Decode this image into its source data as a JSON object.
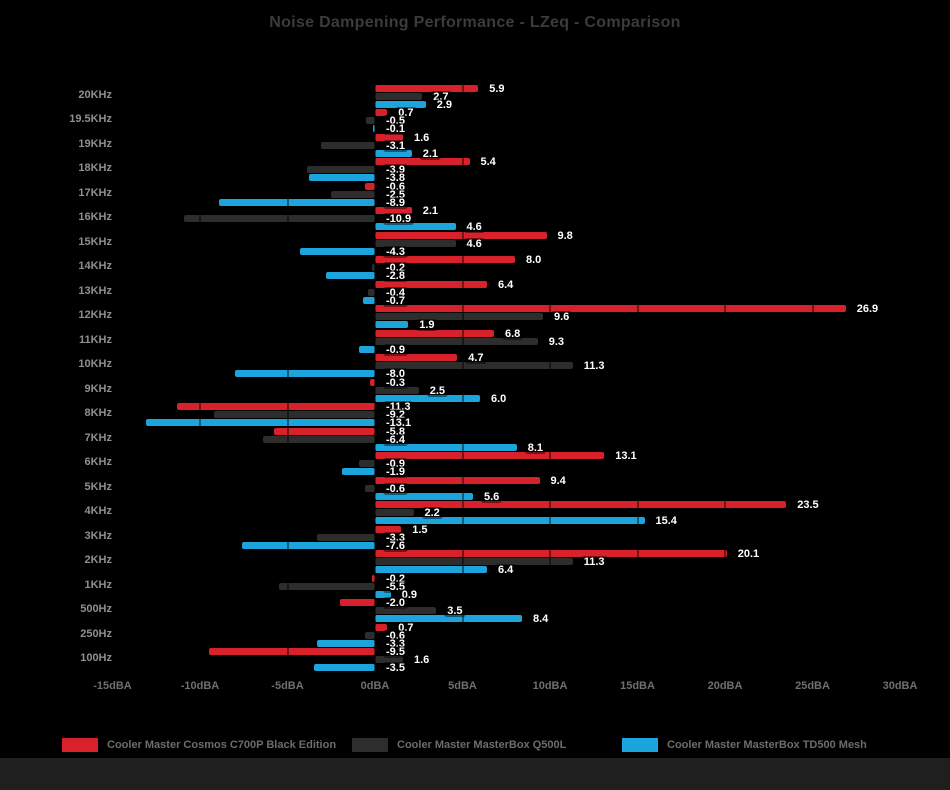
{
  "title": "Noise Dampening Performance - LZeq - Comparison",
  "chart_data": {
    "type": "bar",
    "orientation": "horizontal",
    "title": "Noise Dampening Performance - LZeq - Comparison",
    "xlabel": "",
    "ylabel": "",
    "xlim": [
      -15,
      30
    ],
    "grid": true,
    "legend_position": "bottom",
    "value_suffix": "dBA",
    "x_ticks": [
      {
        "label": "-15dBA",
        "value": -15
      },
      {
        "label": "-10dBA",
        "value": -10
      },
      {
        "label": "-5dBA",
        "value": -5
      },
      {
        "label": "0dBA",
        "value": 0
      },
      {
        "label": "5dBA",
        "value": 5
      },
      {
        "label": "10dBA",
        "value": 10
      },
      {
        "label": "15dBA",
        "value": 15
      },
      {
        "label": "20dBA",
        "value": 20
      },
      {
        "label": "25dBA",
        "value": 25
      },
      {
        "label": "30dBA",
        "value": 30
      }
    ],
    "categories": [
      "20KHz",
      "19.5KHz",
      "19KHz",
      "18KHz",
      "17KHz",
      "16KHz",
      "15KHz",
      "14KHz",
      "13KHz",
      "12KHz",
      "11KHz",
      "10KHz",
      "9KHz",
      "8KHz",
      "7KHz",
      "6KHz",
      "5KHz",
      "4KHz",
      "3KHz",
      "2KHz",
      "1KHz",
      "500Hz",
      "250Hz",
      "100Hz"
    ],
    "series": [
      {
        "name": "Cooler Master Cosmos C700P Black Edition",
        "color": "#d8212a",
        "values": [
          5.9,
          0.7,
          1.6,
          5.4,
          -0.6,
          2.1,
          9.8,
          8.0,
          6.4,
          26.9,
          6.8,
          4.7,
          -0.3,
          -11.3,
          -5.8,
          13.1,
          9.4,
          23.5,
          1.5,
          20.1,
          -0.2,
          -2.0,
          0.7,
          -9.5
        ]
      },
      {
        "name": "Cooler Master MasterBox Q500L",
        "color": "#2d2d2d",
        "values": [
          2.7,
          -0.5,
          -3.1,
          -3.9,
          -2.5,
          -10.9,
          4.6,
          -0.2,
          -0.4,
          9.6,
          9.3,
          11.3,
          2.5,
          -9.2,
          -6.4,
          -0.9,
          -0.6,
          2.2,
          -3.3,
          11.3,
          -5.5,
          3.5,
          -0.6,
          1.6
        ]
      },
      {
        "name": "Cooler Master MasterBox TD500 Mesh",
        "color": "#1ca5dd",
        "values": [
          2.9,
          -0.1,
          2.1,
          -3.8,
          -8.9,
          4.6,
          -4.3,
          -2.8,
          -0.7,
          1.9,
          -0.9,
          -8.0,
          6.0,
          -13.1,
          8.1,
          -1.9,
          5.6,
          15.4,
          -7.6,
          6.4,
          0.9,
          8.4,
          -3.3,
          -3.5
        ]
      }
    ]
  },
  "colors": {
    "background": "#000000",
    "title_text": "#3b3b3b",
    "category_text": "#8f8f8f",
    "axis_text": "#6f6f6f",
    "legend_text": "#6c6c6c",
    "value_text": "#ffffff",
    "footer_bar": "#1f1f1f"
  }
}
